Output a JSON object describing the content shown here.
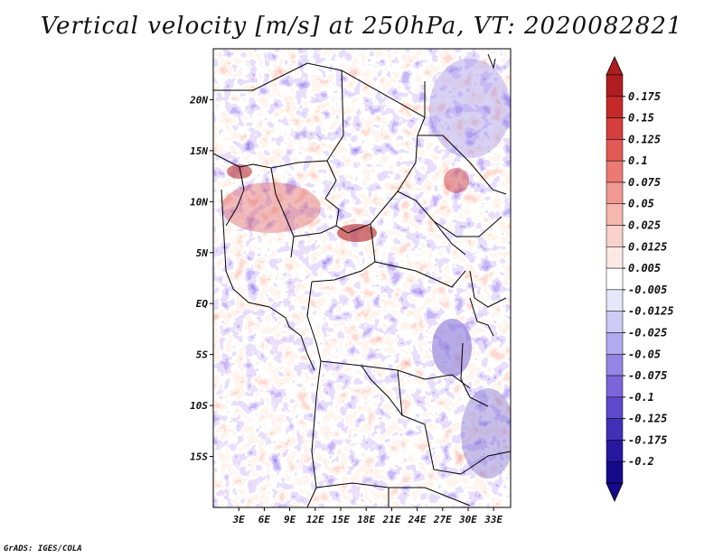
{
  "title": "Vertical velocity [m/s] at 250hPa, VT: 2020082821",
  "credit": "GrADS: IGES/COLA",
  "map": {
    "variable": "Vertical velocity",
    "units": "m/s",
    "level": "250hPa",
    "valid_time": "2020082821",
    "lat_labels": [
      "20N",
      "15N",
      "10N",
      "5N",
      "EQ",
      "5S",
      "10S",
      "15S"
    ],
    "lon_labels": [
      "3E",
      "6E",
      "9E",
      "12E",
      "15E",
      "18E",
      "21E",
      "24E",
      "27E",
      "30E",
      "33E"
    ],
    "lat_values": [
      20,
      15,
      10,
      5,
      0,
      -5,
      -10,
      -15
    ],
    "lon_values": [
      3,
      6,
      9,
      12,
      15,
      18,
      21,
      24,
      27,
      30,
      33
    ],
    "extent": {
      "lon_min": 0,
      "lon_max": 35,
      "lat_min": -20,
      "lat_max": 25
    }
  },
  "colorbar": {
    "labels": [
      "0.175",
      "0.15",
      "0.125",
      "0.1",
      "0.075",
      "0.05",
      "0.025",
      "0.0125",
      "0.005",
      "-0.005",
      "-0.0125",
      "-0.025",
      "-0.05",
      "-0.075",
      "-0.1",
      "-0.125",
      "-0.175",
      "-0.2"
    ],
    "colors": [
      "#b01d20",
      "#c42a2a",
      "#d53e3e",
      "#e25a55",
      "#ea7a72",
      "#f09990",
      "#f5b7ae",
      "#f9d2cc",
      "#fce9e6",
      "#ffffff",
      "#e7e6fb",
      "#cfcaf5",
      "#b2aaee",
      "#9585e4",
      "#7a66da",
      "#5e48cc",
      "#4230b8",
      "#2818a0",
      "#170a8a"
    ],
    "top_color": "#b01d20",
    "bottom_color": "#170a8a"
  }
}
